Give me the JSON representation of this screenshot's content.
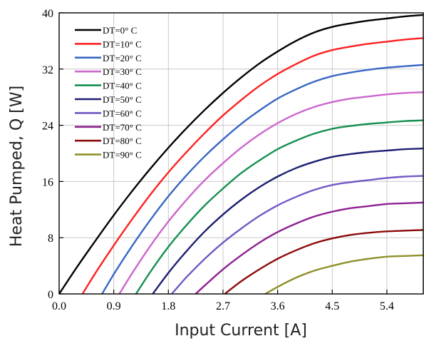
{
  "chart_data": {
    "type": "line",
    "xlabel": "Input Current [A]",
    "ylabel": "Heat Pumped, Q [W]",
    "xlim": [
      0,
      6.0
    ],
    "ylim": [
      0,
      40
    ],
    "xticks": [
      "0.0",
      "0.9",
      "1.8",
      "2.7",
      "3.6",
      "4.5",
      "5.4"
    ],
    "yticks": [
      "0",
      "8",
      "16",
      "24",
      "32",
      "40"
    ],
    "grid": true,
    "legend_position": "top-left",
    "x": [
      0,
      0.3,
      0.6,
      0.9,
      1.2,
      1.5,
      1.8,
      2.1,
      2.4,
      2.7,
      3.0,
      3.3,
      3.6,
      3.9,
      4.2,
      4.5,
      4.8,
      5.1,
      5.4,
      5.7,
      6.0
    ],
    "series": [
      {
        "name": "DT=0° C",
        "color": "#000000",
        "values": [
          0.0,
          3.9,
          7.6,
          11.2,
          14.6,
          17.8,
          20.8,
          23.6,
          26.2,
          28.6,
          30.8,
          32.8,
          34.5,
          36.0,
          37.2,
          38.0,
          38.5,
          38.9,
          39.2,
          39.5,
          39.7
        ]
      },
      {
        "name": "DT=10° C",
        "color": "#ff2020",
        "values": [
          null,
          -1.2,
          3.0,
          6.9,
          10.6,
          14.1,
          17.3,
          20.2,
          22.9,
          25.4,
          27.6,
          29.6,
          31.3,
          32.7,
          33.9,
          34.7,
          35.2,
          35.6,
          35.9,
          36.2,
          36.4
        ]
      },
      {
        "name": "DT=20° C",
        "color": "#3a66c4",
        "values": [
          null,
          null,
          -1.6,
          2.8,
          6.8,
          10.5,
          13.9,
          16.9,
          19.6,
          22.0,
          24.2,
          26.1,
          27.8,
          29.1,
          30.2,
          31.0,
          31.5,
          31.9,
          32.2,
          32.4,
          32.6
        ]
      },
      {
        "name": "DT=30° C",
        "color": "#cc66cc",
        "values": [
          null,
          null,
          null,
          -1.3,
          2.9,
          6.8,
          10.3,
          13.4,
          16.2,
          18.6,
          20.8,
          22.7,
          24.3,
          25.6,
          26.6,
          27.3,
          27.8,
          28.1,
          28.4,
          28.6,
          28.7
        ]
      },
      {
        "name": "DT=40° C",
        "color": "#159050",
        "values": [
          null,
          null,
          null,
          null,
          -0.9,
          3.1,
          6.7,
          9.8,
          12.6,
          15.0,
          17.2,
          19.0,
          20.6,
          21.8,
          22.8,
          23.5,
          23.9,
          24.2,
          24.4,
          24.6,
          24.7
        ]
      },
      {
        "name": "DT=50° C",
        "color": "#1c1f70",
        "values": [
          null,
          null,
          null,
          null,
          null,
          -0.5,
          3.0,
          6.1,
          8.9,
          11.3,
          13.4,
          15.2,
          16.7,
          17.9,
          18.8,
          19.5,
          19.9,
          20.2,
          20.4,
          20.6,
          20.7
        ]
      },
      {
        "name": "DT=60° C",
        "color": "#7358c4",
        "values": [
          null,
          null,
          null,
          null,
          null,
          -2.9,
          -0.5,
          2.4,
          5.0,
          7.3,
          9.3,
          11.1,
          12.6,
          13.8,
          14.8,
          15.5,
          15.9,
          16.2,
          16.5,
          16.7,
          16.8
        ]
      },
      {
        "name": "DT=70° C",
        "color": "#8e2090",
        "values": [
          null,
          null,
          null,
          null,
          null,
          null,
          null,
          -1.2,
          1.2,
          3.5,
          5.5,
          7.3,
          8.8,
          10.0,
          11.0,
          11.7,
          12.2,
          12.5,
          12.8,
          12.9,
          13.0
        ]
      },
      {
        "name": "DT=80° C",
        "color": "#8b0a0a",
        "values": [
          null,
          null,
          null,
          null,
          null,
          null,
          null,
          null,
          null,
          -0.2,
          1.8,
          3.5,
          5.0,
          6.2,
          7.2,
          7.9,
          8.4,
          8.7,
          8.9,
          9.0,
          9.1
        ]
      },
      {
        "name": "DT=90° C",
        "color": "#8f8f2a",
        "values": [
          null,
          null,
          null,
          null,
          null,
          null,
          null,
          null,
          null,
          null,
          null,
          -0.5,
          1.0,
          2.3,
          3.3,
          4.0,
          4.6,
          5.0,
          5.3,
          5.4,
          5.5
        ]
      }
    ]
  }
}
